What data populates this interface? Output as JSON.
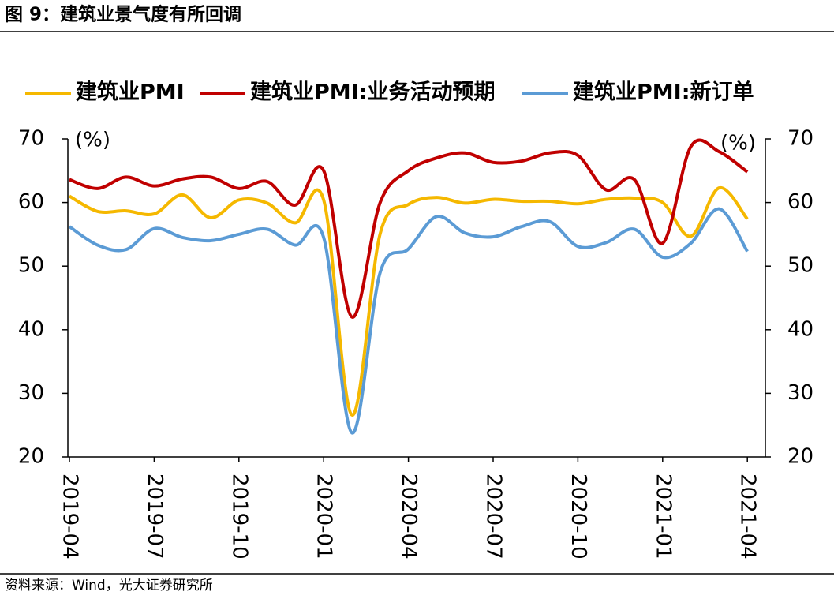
{
  "chart_data": {
    "type": "line",
    "title": "图 9：建筑业景气度有所回调",
    "source": "资料来源：Wind，光大证券研究所",
    "y_label": "(%)",
    "y2_label": "(%)",
    "categories": [
      "2019-04",
      null,
      null,
      "2019-07",
      null,
      null,
      "2019-10",
      null,
      null,
      "2020-01",
      null,
      null,
      "2020-04",
      null,
      null,
      "2020-07",
      null,
      null,
      "2020-10",
      null,
      null,
      "2021-01",
      null,
      null,
      "2021-04"
    ],
    "series": [
      {
        "name": "建筑业PMI",
        "color": "#f5b800",
        "values": [
          61.0,
          58.6,
          58.7,
          58.2,
          61.2,
          57.6,
          60.4,
          59.9,
          56.8,
          60.4,
          26.6,
          55.1,
          59.7,
          60.8,
          59.9,
          60.5,
          60.2,
          60.2,
          59.8,
          60.5,
          60.7,
          60.0,
          54.7,
          62.3,
          57.4
        ]
      },
      {
        "name": "建筑业PMI:业务活动预期",
        "color": "#c00000",
        "values": [
          63.6,
          62.2,
          64.0,
          62.6,
          63.7,
          64.0,
          62.2,
          63.3,
          59.6,
          65.0,
          42.0,
          60.0,
          65.0,
          67.0,
          67.8,
          66.3,
          66.5,
          67.8,
          67.4,
          62.0,
          63.6,
          53.6,
          68.8,
          68.0,
          64.8
        ]
      },
      {
        "name": "建筑业PMI:新订单",
        "color": "#5b9bd5",
        "values": [
          56.2,
          53.3,
          52.6,
          55.9,
          54.5,
          54.0,
          55.0,
          55.8,
          53.3,
          54.5,
          23.8,
          49.0,
          52.7,
          57.8,
          55.2,
          54.6,
          56.2,
          57.0,
          53.1,
          53.7,
          55.8,
          51.4,
          53.6,
          59.0,
          52.3
        ]
      }
    ],
    "ylim": [
      20,
      70
    ],
    "yticks": [
      20,
      30,
      40,
      50,
      60,
      70
    ],
    "y2lim": [
      20,
      70
    ],
    "y2ticks": [
      20,
      30,
      40,
      50,
      60,
      70
    ]
  }
}
